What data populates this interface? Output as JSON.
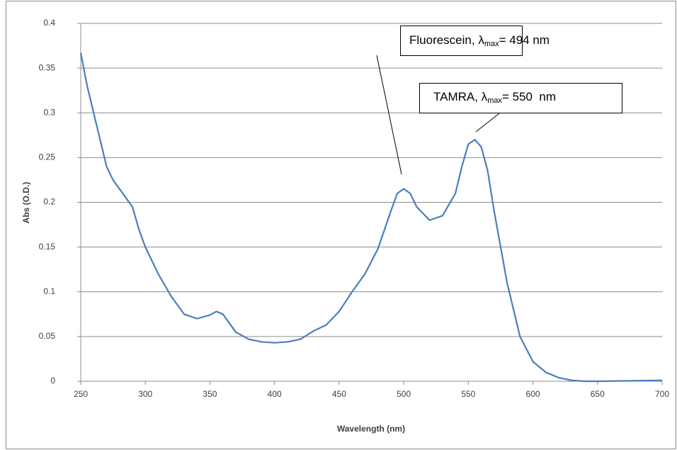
{
  "chart_data": {
    "type": "line",
    "xlabel": "Wavelength (nm)",
    "ylabel": "Abs (O.D.)",
    "xlim": [
      250,
      700
    ],
    "xticks": [
      250,
      300,
      350,
      400,
      450,
      500,
      550,
      600,
      650,
      700
    ],
    "ylim": [
      0,
      0.4
    ],
    "yticks": [
      0,
      0.05,
      0.1,
      0.15,
      0.2,
      0.25,
      0.3,
      0.35,
      0.4
    ],
    "grid": true,
    "x": [
      250,
      255,
      260,
      265,
      270,
      275,
      280,
      285,
      290,
      295,
      300,
      310,
      320,
      330,
      340,
      350,
      355,
      360,
      370,
      380,
      390,
      400,
      410,
      420,
      430,
      440,
      450,
      460,
      470,
      480,
      490,
      495,
      500,
      505,
      510,
      520,
      530,
      540,
      545,
      550,
      555,
      560,
      565,
      570,
      580,
      590,
      600,
      610,
      620,
      630,
      640,
      650,
      700
    ],
    "series": [
      {
        "color": "#4a7ebb",
        "values": [
          0.367,
          0.33,
          0.3,
          0.27,
          0.24,
          0.225,
          0.215,
          0.205,
          0.195,
          0.17,
          0.15,
          0.12,
          0.095,
          0.075,
          0.07,
          0.074,
          0.078,
          0.075,
          0.055,
          0.047,
          0.044,
          0.043,
          0.044,
          0.047,
          0.056,
          0.063,
          0.078,
          0.1,
          0.12,
          0.148,
          0.19,
          0.21,
          0.215,
          0.21,
          0.195,
          0.18,
          0.185,
          0.21,
          0.24,
          0.265,
          0.27,
          0.262,
          0.235,
          0.19,
          0.11,
          0.05,
          0.022,
          0.01,
          0.004,
          0.001,
          0,
          0,
          0.001
        ]
      }
    ],
    "annotations": [
      {
        "text": "Fluorescein, λ",
        "sub": "max",
        "after": "= 494 nm"
      },
      {
        "text": "TAMRA, λ",
        "sub": "max",
        "after": "= 550  nm"
      }
    ]
  }
}
